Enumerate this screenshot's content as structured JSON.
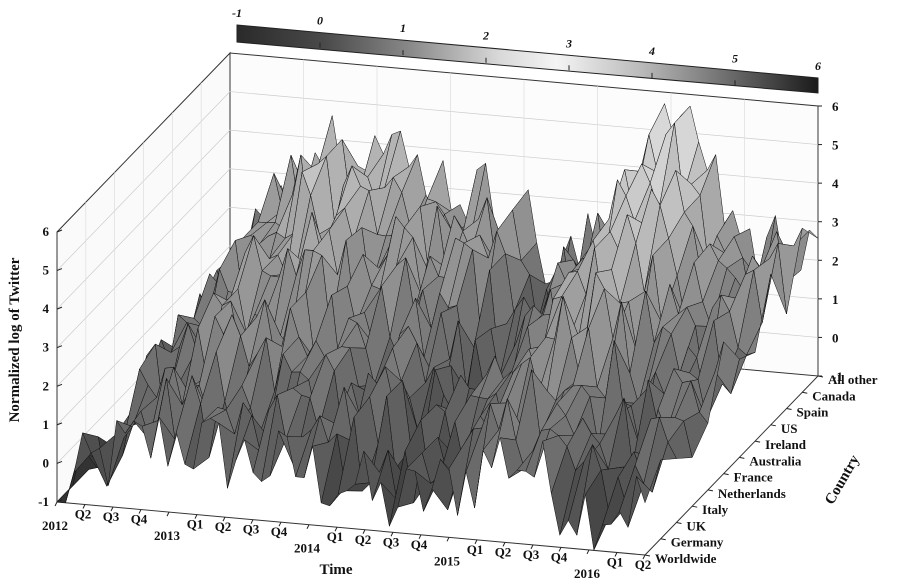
{
  "chart_data": {
    "type": "surface3d",
    "title": "",
    "xlabel": "Time",
    "ylabel": "Country",
    "zlabel": "Normalized log of Twitter",
    "zlim": [
      -1,
      6
    ],
    "z_ticks": [
      "-1",
      "0",
      "1",
      "2",
      "3",
      "4",
      "5",
      "6"
    ],
    "colorbar": {
      "range": [
        -1,
        6
      ],
      "ticks": [
        "-1",
        "0",
        "1",
        "2",
        "3",
        "4",
        "5",
        "6"
      ],
      "colormap": "grayscale"
    },
    "time_ticks": [
      {
        "label": "2012",
        "year": true
      },
      {
        "label": "Q2"
      },
      {
        "label": "Q3"
      },
      {
        "label": "Q4"
      },
      {
        "label": "2013",
        "year": true
      },
      {
        "label": "Q1"
      },
      {
        "label": "Q2"
      },
      {
        "label": "Q3"
      },
      {
        "label": "Q4"
      },
      {
        "label": "2014",
        "year": true
      },
      {
        "label": "Q1"
      },
      {
        "label": "Q2"
      },
      {
        "label": "Q3"
      },
      {
        "label": "Q4"
      },
      {
        "label": "2015",
        "year": true
      },
      {
        "label": "Q1"
      },
      {
        "label": "Q2"
      },
      {
        "label": "Q3"
      },
      {
        "label": "Q4"
      },
      {
        "label": "2016",
        "year": true
      },
      {
        "label": "Q1"
      },
      {
        "label": "Q2"
      }
    ],
    "countries": [
      "Worldwide",
      "Germany",
      "UK",
      "Italy",
      "Netherlands",
      "France",
      "Australia",
      "Ireland",
      "US",
      "Spain",
      "Canada",
      "All other"
    ],
    "surface_profile": {
      "description_free_values": true,
      "time_points": [
        0,
        0.05,
        0.1,
        0.2,
        0.3,
        0.4,
        0.5,
        0.55,
        0.6,
        0.65,
        0.7,
        0.75,
        0.8,
        0.85,
        0.9,
        0.95,
        1.0
      ],
      "level_by_time": [
        -1,
        1.5,
        3.0,
        4.5,
        3.5,
        3.0,
        2.5,
        1.0,
        1.5,
        2.5,
        3.5,
        5.5,
        5.0,
        3.0,
        2.0,
        2.5,
        3.0
      ]
    }
  }
}
